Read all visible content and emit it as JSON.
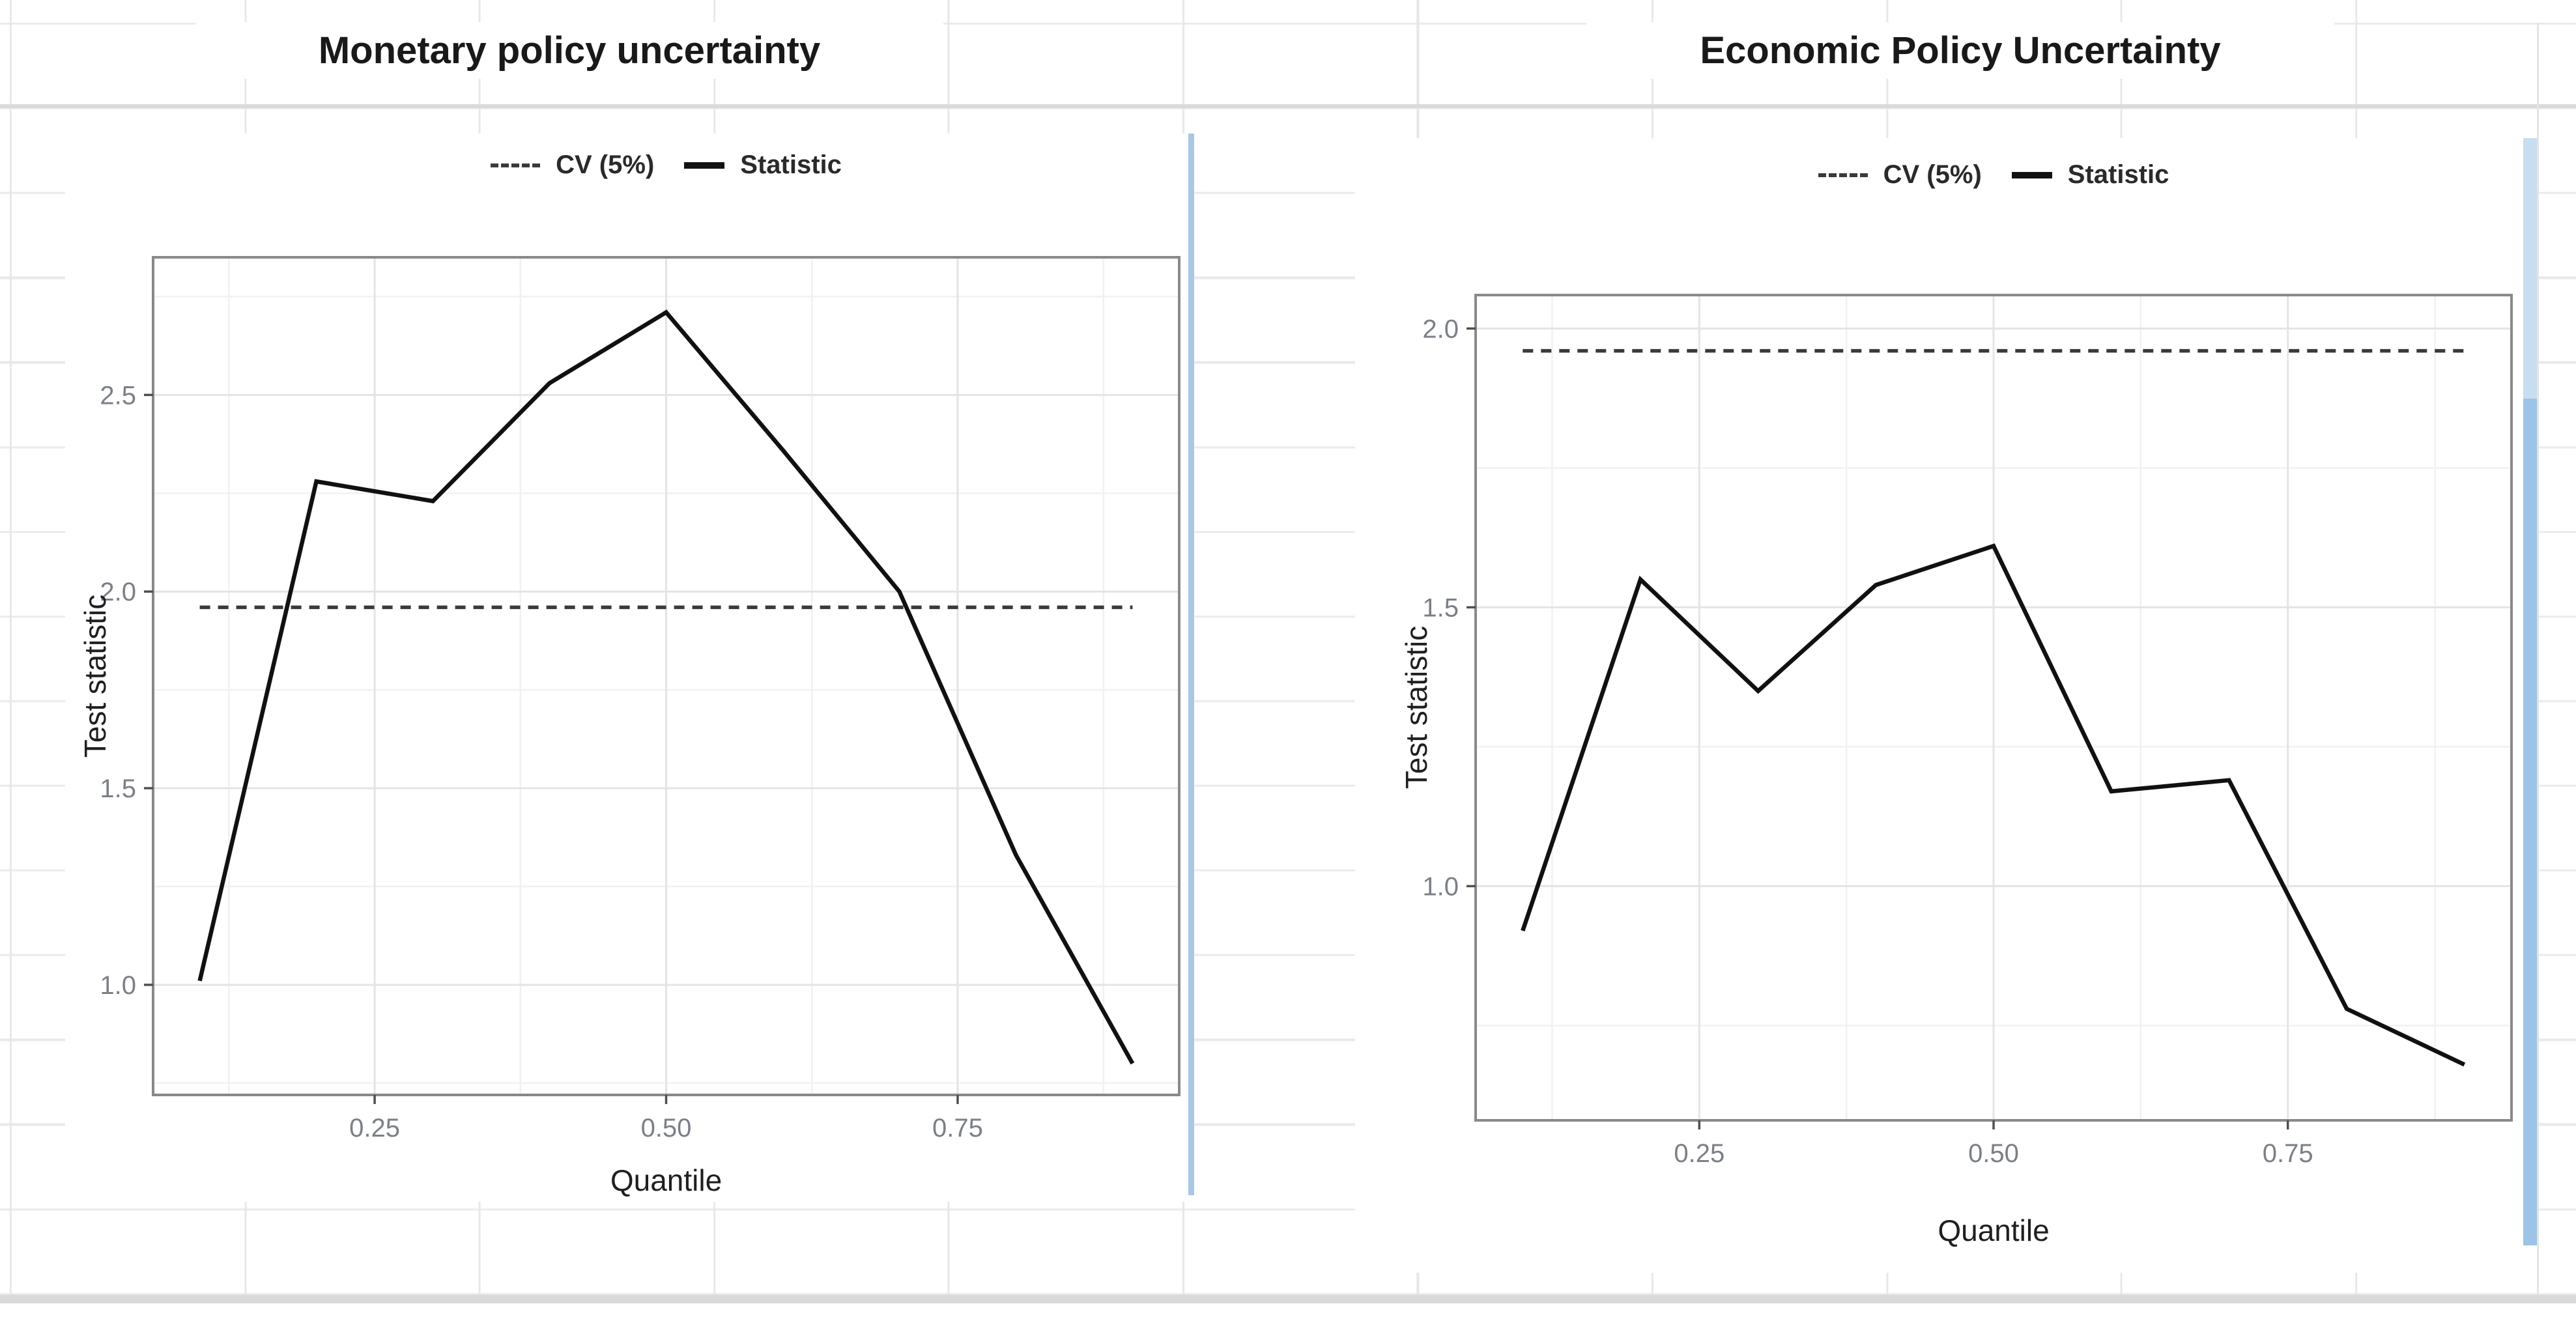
{
  "colors": {
    "statistic_line": "#111111",
    "cv_line": "#3a3a3a",
    "panel_border": "#898989",
    "grid_major": "#e4e4e4",
    "grid_minor": "#f1f1f1",
    "tick_mark": "#4f4f4f",
    "tick_text": "#7b7f87",
    "axis_title_text": "#1f1f1f",
    "chart_title_text": "#191919",
    "sheet_grid": "#e6e6e6",
    "image_edge_blue": "#a9c8e8",
    "right_strip_blue": "#9dc3e6",
    "bottom_band_gray": "#d9d9d9"
  },
  "chart_data": [
    {
      "type": "line",
      "title": "Monetary policy uncertainty",
      "xlabel": "Quantile",
      "ylabel": "Test statistic",
      "x": [
        0.1,
        0.2,
        0.3,
        0.4,
        0.5,
        0.6,
        0.7,
        0.8,
        0.9
      ],
      "series": [
        {
          "name": "CV (5%)",
          "style": "dashed",
          "constant": 1.96
        },
        {
          "name": "Statistic",
          "style": "solid",
          "values": [
            1.01,
            2.28,
            2.23,
            2.53,
            2.71,
            2.36,
            2.0,
            1.33,
            0.8
          ]
        }
      ],
      "x_ticks": [
        "0.25",
        "0.50",
        "0.75"
      ],
      "y_ticks": [
        "1.0",
        "1.5",
        "2.0",
        "2.5"
      ],
      "xlim": [
        0.06,
        0.94
      ],
      "ylim": [
        0.72,
        2.85
      ],
      "grid": true,
      "legend_position": "top-center"
    },
    {
      "type": "line",
      "title": "Economic Policy Uncertainty",
      "xlabel": "Quantile",
      "ylabel": "Test statistic",
      "x": [
        0.1,
        0.2,
        0.3,
        0.4,
        0.5,
        0.6,
        0.7,
        0.8,
        0.9
      ],
      "series": [
        {
          "name": "CV (5%)",
          "style": "dashed",
          "constant": 1.96
        },
        {
          "name": "Statistic",
          "style": "solid",
          "values": [
            0.92,
            1.55,
            1.35,
            1.54,
            1.61,
            1.17,
            1.19,
            0.78,
            0.68
          ]
        }
      ],
      "x_ticks": [
        "0.25",
        "0.50",
        "0.75"
      ],
      "y_ticks": [
        "1.0",
        "1.5",
        "2.0"
      ],
      "xlim": [
        0.06,
        0.94
      ],
      "ylim": [
        0.58,
        2.06
      ],
      "grid": true,
      "legend_position": "top-center"
    }
  ]
}
